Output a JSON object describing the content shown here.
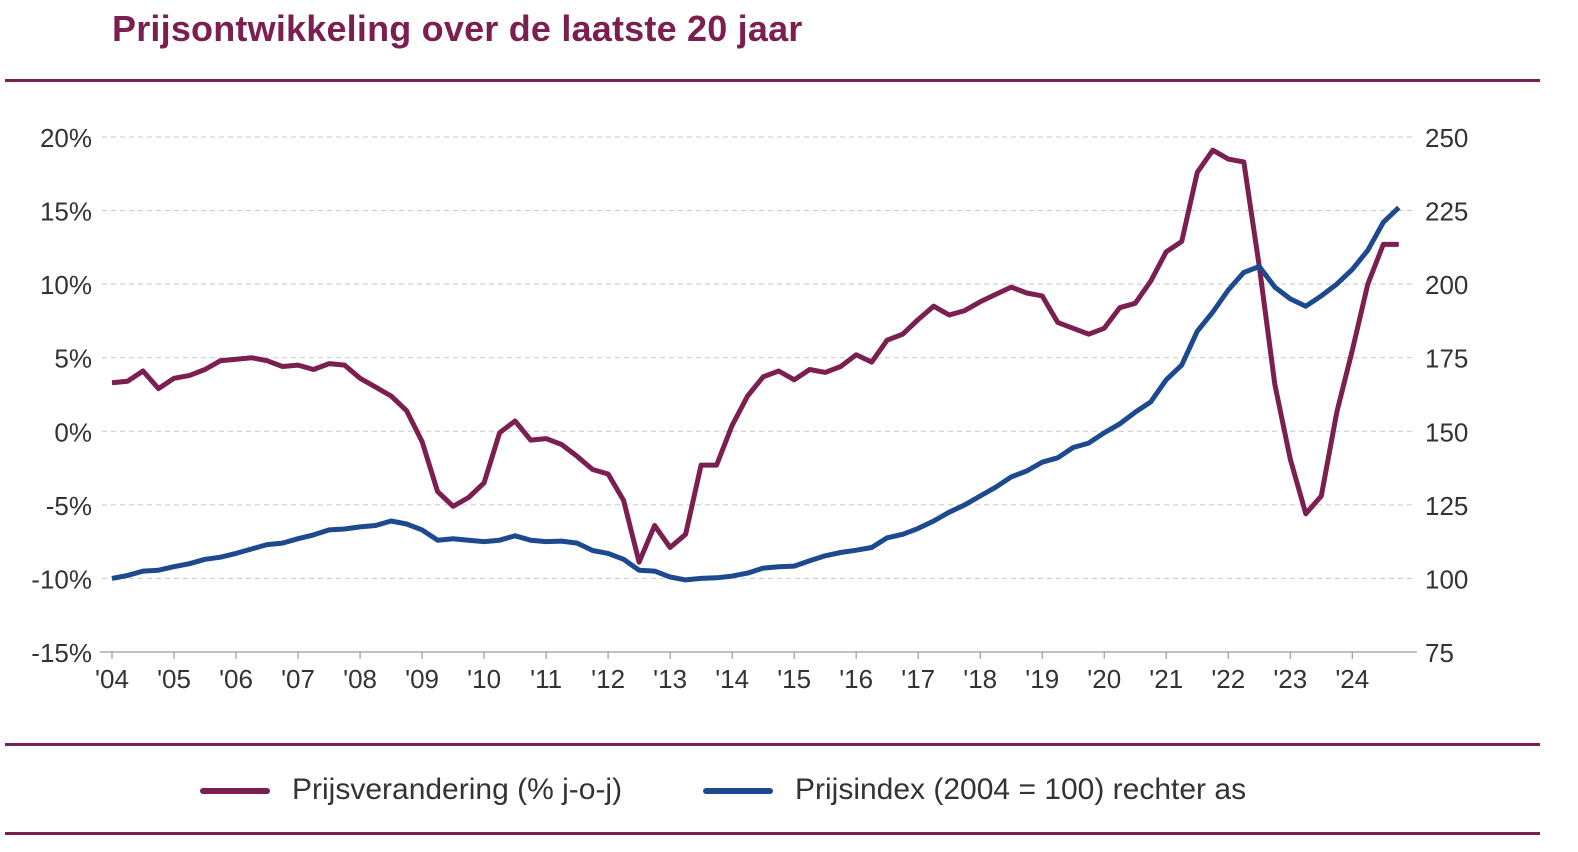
{
  "title": "Prijsontwikkeling over de laatste 20 jaar",
  "colors": {
    "title": "#7a1f4f",
    "series_pct": "#7a1f4f",
    "series_index": "#1d4a8f",
    "grid": "#c8c8c8",
    "text": "#333333"
  },
  "legend": {
    "items": [
      {
        "label": "Prijsverandering (% j-o-j)"
      },
      {
        "label": "Prijsindex (2004 = 100) rechter as"
      }
    ]
  },
  "chart_data": {
    "type": "line",
    "title": "Prijsontwikkeling over de laatste 20 jaar",
    "grid": "horizontal dashed",
    "legend_position": "bottom",
    "x_domain": [
      2004.0,
      2024.75
    ],
    "x_ticks": [
      {
        "x": 2004,
        "label": "'04"
      },
      {
        "x": 2005,
        "label": "'05"
      },
      {
        "x": 2006,
        "label": "'06"
      },
      {
        "x": 2007,
        "label": "'07"
      },
      {
        "x": 2008,
        "label": "'08"
      },
      {
        "x": 2009,
        "label": "'09"
      },
      {
        "x": 2010,
        "label": "'10"
      },
      {
        "x": 2011,
        "label": "'11"
      },
      {
        "x": 2012,
        "label": "'12"
      },
      {
        "x": 2013,
        "label": "'13"
      },
      {
        "x": 2014,
        "label": "'14"
      },
      {
        "x": 2015,
        "label": "'15"
      },
      {
        "x": 2016,
        "label": "'16"
      },
      {
        "x": 2017,
        "label": "'17"
      },
      {
        "x": 2018,
        "label": "'18"
      },
      {
        "x": 2019,
        "label": "'19"
      },
      {
        "x": 2020,
        "label": "'20"
      },
      {
        "x": 2021,
        "label": "'21"
      },
      {
        "x": 2022,
        "label": "'22"
      },
      {
        "x": 2023,
        "label": "'23"
      },
      {
        "x": 2024,
        "label": "'24"
      }
    ],
    "y_left": {
      "range": [
        -15,
        20
      ],
      "ticks": [
        {
          "v": 20,
          "label": "20%"
        },
        {
          "v": 15,
          "label": "15%"
        },
        {
          "v": 10,
          "label": "10%"
        },
        {
          "v": 5,
          "label": "5%"
        },
        {
          "v": 0,
          "label": "0%"
        },
        {
          "v": -5,
          "label": "-5%"
        },
        {
          "v": -10,
          "label": "-10%"
        },
        {
          "v": -15,
          "label": "-15%"
        }
      ]
    },
    "y_right": {
      "range": [
        75,
        250
      ],
      "ticks": [
        {
          "v": 250,
          "label": "250"
        },
        {
          "v": 225,
          "label": "225"
        },
        {
          "v": 200,
          "label": "200"
        },
        {
          "v": 175,
          "label": "175"
        },
        {
          "v": 150,
          "label": "150"
        },
        {
          "v": 125,
          "label": "125"
        },
        {
          "v": 100,
          "label": "100"
        },
        {
          "v": 75,
          "label": "75"
        }
      ]
    },
    "series": [
      {
        "name": "Prijsverandering (% j-o-j)",
        "axis": "left",
        "points": [
          [
            2004.0,
            3.3
          ],
          [
            2004.25,
            3.4
          ],
          [
            2004.5,
            4.1
          ],
          [
            2004.75,
            2.9
          ],
          [
            2005.0,
            3.6
          ],
          [
            2005.25,
            3.8
          ],
          [
            2005.5,
            4.2
          ],
          [
            2005.75,
            4.8
          ],
          [
            2006.0,
            4.9
          ],
          [
            2006.25,
            5.0
          ],
          [
            2006.5,
            4.8
          ],
          [
            2006.75,
            4.4
          ],
          [
            2007.0,
            4.5
          ],
          [
            2007.25,
            4.2
          ],
          [
            2007.5,
            4.6
          ],
          [
            2007.75,
            4.5
          ],
          [
            2008.0,
            3.6
          ],
          [
            2008.25,
            3.0
          ],
          [
            2008.5,
            2.4
          ],
          [
            2008.75,
            1.4
          ],
          [
            2009.0,
            -0.7
          ],
          [
            2009.25,
            -4.1
          ],
          [
            2009.5,
            -5.1
          ],
          [
            2009.75,
            -4.5
          ],
          [
            2010.0,
            -3.5
          ],
          [
            2010.25,
            -0.1
          ],
          [
            2010.5,
            0.7
          ],
          [
            2010.75,
            -0.6
          ],
          [
            2011.0,
            -0.5
          ],
          [
            2011.25,
            -0.9
          ],
          [
            2011.5,
            -1.7
          ],
          [
            2011.75,
            -2.6
          ],
          [
            2012.0,
            -2.9
          ],
          [
            2012.25,
            -4.7
          ],
          [
            2012.5,
            -8.9
          ],
          [
            2012.75,
            -6.4
          ],
          [
            2013.0,
            -7.9
          ],
          [
            2013.25,
            -7.0
          ],
          [
            2013.5,
            -2.3
          ],
          [
            2013.75,
            -2.3
          ],
          [
            2014.0,
            0.4
          ],
          [
            2014.25,
            2.4
          ],
          [
            2014.5,
            3.7
          ],
          [
            2014.75,
            4.1
          ],
          [
            2015.0,
            3.5
          ],
          [
            2015.25,
            4.2
          ],
          [
            2015.5,
            4.0
          ],
          [
            2015.75,
            4.4
          ],
          [
            2016.0,
            5.2
          ],
          [
            2016.25,
            4.7
          ],
          [
            2016.5,
            6.2
          ],
          [
            2016.75,
            6.6
          ],
          [
            2017.0,
            7.6
          ],
          [
            2017.25,
            8.5
          ],
          [
            2017.5,
            7.9
          ],
          [
            2017.75,
            8.2
          ],
          [
            2018.0,
            8.8
          ],
          [
            2018.25,
            9.3
          ],
          [
            2018.5,
            9.8
          ],
          [
            2018.75,
            9.4
          ],
          [
            2019.0,
            9.2
          ],
          [
            2019.25,
            7.4
          ],
          [
            2019.5,
            7.0
          ],
          [
            2019.75,
            6.6
          ],
          [
            2020.0,
            7.0
          ],
          [
            2020.25,
            8.4
          ],
          [
            2020.5,
            8.7
          ],
          [
            2020.75,
            10.2
          ],
          [
            2021.0,
            12.2
          ],
          [
            2021.25,
            12.9
          ],
          [
            2021.5,
            17.6
          ],
          [
            2021.75,
            19.1
          ],
          [
            2022.0,
            18.5
          ],
          [
            2022.25,
            18.3
          ],
          [
            2022.5,
            11.2
          ],
          [
            2022.75,
            3.2
          ],
          [
            2023.0,
            -1.9
          ],
          [
            2023.25,
            -5.6
          ],
          [
            2023.5,
            -4.4
          ],
          [
            2023.75,
            1.3
          ],
          [
            2024.0,
            5.5
          ],
          [
            2024.25,
            10.0
          ],
          [
            2024.5,
            12.7
          ],
          [
            2024.75,
            12.7
          ]
        ]
      },
      {
        "name": "Prijsindex (2004 = 100) rechter as",
        "axis": "right",
        "points": [
          [
            2004.0,
            100.0
          ],
          [
            2004.25,
            101.0
          ],
          [
            2004.5,
            102.5
          ],
          [
            2004.75,
            102.8
          ],
          [
            2005.0,
            104.0
          ],
          [
            2005.25,
            105.0
          ],
          [
            2005.5,
            106.5
          ],
          [
            2005.75,
            107.2
          ],
          [
            2006.0,
            108.5
          ],
          [
            2006.25,
            110.0
          ],
          [
            2006.5,
            111.5
          ],
          [
            2006.75,
            112.0
          ],
          [
            2007.0,
            113.5
          ],
          [
            2007.25,
            114.8
          ],
          [
            2007.5,
            116.5
          ],
          [
            2007.75,
            116.8
          ],
          [
            2008.0,
            117.5
          ],
          [
            2008.25,
            118.0
          ],
          [
            2008.5,
            119.5
          ],
          [
            2008.75,
            118.5
          ],
          [
            2009.0,
            116.5
          ],
          [
            2009.25,
            113.0
          ],
          [
            2009.5,
            113.5
          ],
          [
            2009.75,
            113.0
          ],
          [
            2010.0,
            112.5
          ],
          [
            2010.25,
            113.0
          ],
          [
            2010.5,
            114.5
          ],
          [
            2010.75,
            113.0
          ],
          [
            2011.0,
            112.5
          ],
          [
            2011.25,
            112.7
          ],
          [
            2011.5,
            112.0
          ],
          [
            2011.75,
            109.5
          ],
          [
            2012.0,
            108.5
          ],
          [
            2012.25,
            106.5
          ],
          [
            2012.5,
            102.8
          ],
          [
            2012.75,
            102.5
          ],
          [
            2013.0,
            100.5
          ],
          [
            2013.25,
            99.5
          ],
          [
            2013.5,
            100.0
          ],
          [
            2013.75,
            100.2
          ],
          [
            2014.0,
            100.8
          ],
          [
            2014.25,
            101.8
          ],
          [
            2014.5,
            103.5
          ],
          [
            2014.75,
            104.0
          ],
          [
            2015.0,
            104.2
          ],
          [
            2015.25,
            106.0
          ],
          [
            2015.5,
            107.7
          ],
          [
            2015.75,
            108.8
          ],
          [
            2016.0,
            109.6
          ],
          [
            2016.25,
            110.5
          ],
          [
            2016.5,
            113.8
          ],
          [
            2016.75,
            115.0
          ],
          [
            2017.0,
            117.0
          ],
          [
            2017.25,
            119.5
          ],
          [
            2017.5,
            122.5
          ],
          [
            2017.75,
            125.0
          ],
          [
            2018.0,
            128.0
          ],
          [
            2018.25,
            131.0
          ],
          [
            2018.5,
            134.5
          ],
          [
            2018.75,
            136.5
          ],
          [
            2019.0,
            139.5
          ],
          [
            2019.25,
            141.0
          ],
          [
            2019.5,
            144.5
          ],
          [
            2019.75,
            146.0
          ],
          [
            2020.0,
            149.5
          ],
          [
            2020.25,
            152.5
          ],
          [
            2020.5,
            156.5
          ],
          [
            2020.75,
            160.0
          ],
          [
            2021.0,
            167.5
          ],
          [
            2021.25,
            172.5
          ],
          [
            2021.5,
            184.0
          ],
          [
            2021.75,
            190.5
          ],
          [
            2022.0,
            198.0
          ],
          [
            2022.25,
            204.0
          ],
          [
            2022.5,
            206.0
          ],
          [
            2022.75,
            199.0
          ],
          [
            2023.0,
            195.0
          ],
          [
            2023.25,
            192.5
          ],
          [
            2023.5,
            196.0
          ],
          [
            2023.75,
            200.0
          ],
          [
            2024.0,
            205.0
          ],
          [
            2024.25,
            211.5
          ],
          [
            2024.5,
            221.0
          ],
          [
            2024.75,
            226.0
          ]
        ]
      }
    ]
  }
}
